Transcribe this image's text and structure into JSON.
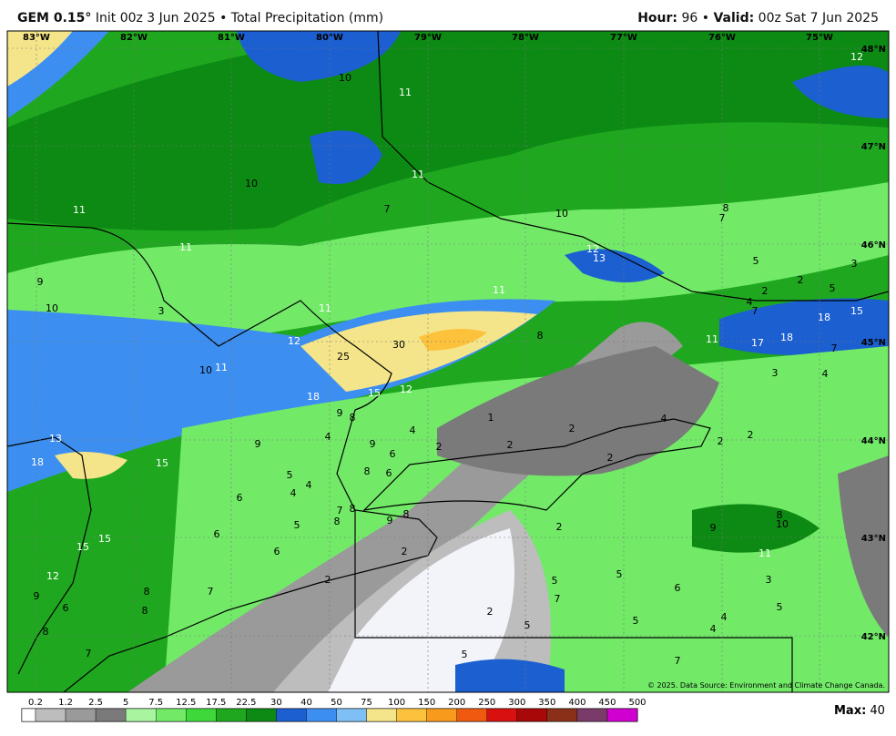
{
  "header": {
    "model": "GEM 0.15°",
    "init": "Init 00z 3 Jun 2025",
    "separator": "•",
    "field": "Total Precipitation (mm)",
    "hour_label": "Hour:",
    "hour": "96",
    "valid_label": "Valid:",
    "valid": "00z Sat 7 Jun 2025"
  },
  "map": {
    "lon_labels": [
      "83°W",
      "82°W",
      "81°W",
      "80°W",
      "79°W",
      "78°W",
      "77°W",
      "76°W",
      "75°W"
    ],
    "lat_labels": [
      "48°N",
      "47°N",
      "46°N",
      "45°N",
      "44°N",
      "43°N",
      "42°N"
    ],
    "contour_labels": [
      "10",
      "11",
      "10",
      "11",
      "11",
      "7",
      "11",
      "10",
      "12",
      "13",
      "9",
      "10",
      "11",
      "11",
      "3",
      "12",
      "30",
      "25",
      "8",
      "10",
      "11",
      "18",
      "15",
      "12",
      "9",
      "8",
      "4",
      "1",
      "2",
      "4",
      "13",
      "9",
      "4",
      "9",
      "6",
      "2",
      "2",
      "2",
      "18",
      "15",
      "5",
      "4",
      "4",
      "8",
      "6",
      "6",
      "7",
      "8",
      "8",
      "9",
      "8",
      "5",
      "6",
      "6",
      "2",
      "2",
      "15",
      "15",
      "12",
      "2",
      "9",
      "8",
      "7",
      "6",
      "8",
      "5",
      "7",
      "5",
      "2",
      "5",
      "5",
      "6",
      "8",
      "7",
      "5",
      "7",
      "3",
      "5",
      "4",
      "4",
      "9",
      "8",
      "10",
      "11",
      "2",
      "2",
      "3",
      "4",
      "11",
      "17",
      "18",
      "7",
      "18",
      "15",
      "7",
      "4",
      "2",
      "2",
      "5",
      "5",
      "3",
      "8",
      "7",
      "12"
    ],
    "credit": "© 2025. Data Source: Environment and Climate Change Canada."
  },
  "legend": {
    "ticks": [
      0.2,
      1.2,
      2.5,
      5,
      7.5,
      12.5,
      17.5,
      22.5,
      30,
      40,
      50,
      75,
      100,
      150,
      200,
      250,
      300,
      350,
      400,
      450,
      500
    ],
    "colors": [
      "#ffffff",
      "#bdbdbd",
      "#9a9a9a",
      "#7a7a7a",
      "#a8f5a0",
      "#72ea68",
      "#3fd83a",
      "#1fa81f",
      "#0d8a14",
      "#1b5fd0",
      "#3c8ff0",
      "#7ec0f5",
      "#f5e58a",
      "#fcc23c",
      "#f89a1c",
      "#f05a10",
      "#d81010",
      "#a80808",
      "#8a3018",
      "#7a3a6a",
      "#d000d0"
    ],
    "max_label": "Max",
    "max_sep": ":",
    "max": "40"
  }
}
